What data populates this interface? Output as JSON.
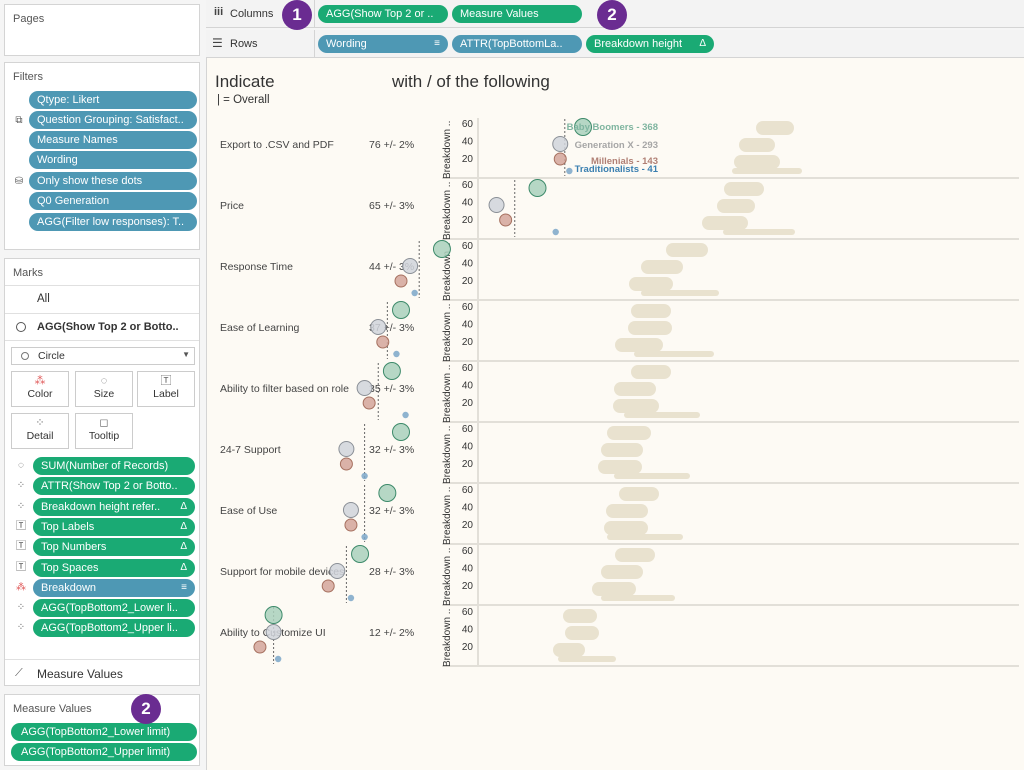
{
  "pages": {
    "title": "Pages"
  },
  "filters": {
    "title": "Filters",
    "items": [
      "Qtype: Likert",
      "Question Grouping: Satisfact..",
      "Measure Names",
      "Wording",
      "Only show these dots",
      "Q0 Generation",
      "AGG(Filter low responses): T.."
    ]
  },
  "marks": {
    "title": "Marks",
    "all_label": "All",
    "layer_label": "AGG(Show Top 2 or Botto..",
    "type_select": "Circle",
    "buttons": {
      "color": "Color",
      "size": "Size",
      "label": "Label",
      "detail": "Detail",
      "tooltip": "Tooltip"
    },
    "pills": [
      {
        "text": "SUM(Number of Records)",
        "suffix": "",
        "icon": "size-icon"
      },
      {
        "text": "ATTR(Show Top 2 or Botto..",
        "suffix": "",
        "icon": "detail-icon"
      },
      {
        "text": "Breakdown height refer..",
        "suffix": "Δ",
        "icon": "detail-icon"
      },
      {
        "text": "Top Labels",
        "suffix": "Δ",
        "icon": "label-icon"
      },
      {
        "text": "Top Numbers",
        "suffix": "Δ",
        "icon": "label-icon"
      },
      {
        "text": "Top Spaces",
        "suffix": "Δ",
        "icon": "label-icon"
      },
      {
        "text": "Breakdown",
        "suffix": "≡",
        "icon": "color-icon"
      },
      {
        "text": "AGG(TopBottom2_Lower li..",
        "suffix": "",
        "icon": "detail-icon"
      },
      {
        "text": "AGG(TopBottom2_Upper li..",
        "suffix": "",
        "icon": "detail-icon"
      }
    ],
    "measure_values_layer": "Measure Values"
  },
  "measure_values": {
    "title": "Measure Values",
    "items": [
      "AGG(TopBottom2_Lower limit)",
      "AGG(TopBottom2_Upper limit)"
    ]
  },
  "columns_shelf": {
    "label": "Columns",
    "pills": [
      "AGG(Show Top 2 or ..",
      "Measure Values"
    ]
  },
  "rows_shelf": {
    "label": "Rows",
    "pills": [
      "Wording",
      "ATTR(TopBottomLa..",
      "Breakdown height"
    ],
    "suffixes": [
      "≡",
      "",
      "Δ"
    ]
  },
  "badges": [
    "1",
    "2",
    "2"
  ],
  "viz": {
    "title_left": "Indicate",
    "title_right": "with / of the following",
    "subtitle": "| = Overall",
    "axis_title": "Breakdown ..",
    "ticks": [
      "60",
      "40",
      "20"
    ],
    "legend": [
      {
        "name": "Baby Boomers",
        "count": "368",
        "color": "#7fb5a0"
      },
      {
        "name": "Generation X",
        "count": "293",
        "color": "#a6a6a6"
      },
      {
        "name": "Millenials",
        "count": "143",
        "color": "#b07f74"
      },
      {
        "name": "Traditionalists",
        "count": "41",
        "color": "#3a7fb0"
      }
    ]
  },
  "colors": {
    "baby_boomers": "#a9d0bc",
    "generation_x": "#d0d4da",
    "millenials": "#d4a59a",
    "traditionalists": "#7ba6c8",
    "range_bar": "#e9e2cf",
    "pill_blue": "#4e98b4",
    "pill_green": "#1aaa74",
    "badge": "#6a2c91"
  },
  "chart_data": {
    "type": "scatter",
    "title": "Indicate with / of the following",
    "subtitle": "| = Overall",
    "ylabel": "Breakdown ..",
    "series_order": [
      "Baby Boomers",
      "Generation X",
      "Millenials",
      "Traditionalists"
    ],
    "rows": [
      {
        "label": "Export to .CSV and PDF",
        "value": "76 +/- 2%",
        "overall": 76,
        "points": [
          80,
          75,
          75,
          77
        ]
      },
      {
        "label": "Price",
        "value": "65 +/- 3%",
        "overall": 65,
        "points": [
          70,
          61,
          63,
          74
        ]
      },
      {
        "label": "Response Time",
        "value": "44 +/- 3%",
        "overall": 44,
        "points": [
          49,
          42,
          40,
          43
        ]
      },
      {
        "label": "Ease of Learning",
        "value": "37 +/- 3%",
        "overall": 37,
        "points": [
          40,
          35,
          36,
          39
        ]
      },
      {
        "label": "Ability to filter based on role",
        "value": "35 +/- 3%",
        "overall": 35,
        "points": [
          38,
          32,
          33,
          41
        ]
      },
      {
        "label": "24-7 Support",
        "value": "32 +/- 3%",
        "overall": 32,
        "points": [
          40,
          28,
          28,
          32
        ]
      },
      {
        "label": "Ease of Use",
        "value": "32 +/- 3%",
        "overall": 32,
        "points": [
          37,
          29,
          29,
          32
        ]
      },
      {
        "label": "Support for mobile devices",
        "value": "28 +/- 3%",
        "overall": 28,
        "points": [
          31,
          26,
          24,
          29
        ]
      },
      {
        "label": "Ability to Customize UI",
        "value": "12 +/- 2%",
        "overall": 12,
        "points": [
          12,
          12,
          9,
          13
        ]
      }
    ]
  }
}
